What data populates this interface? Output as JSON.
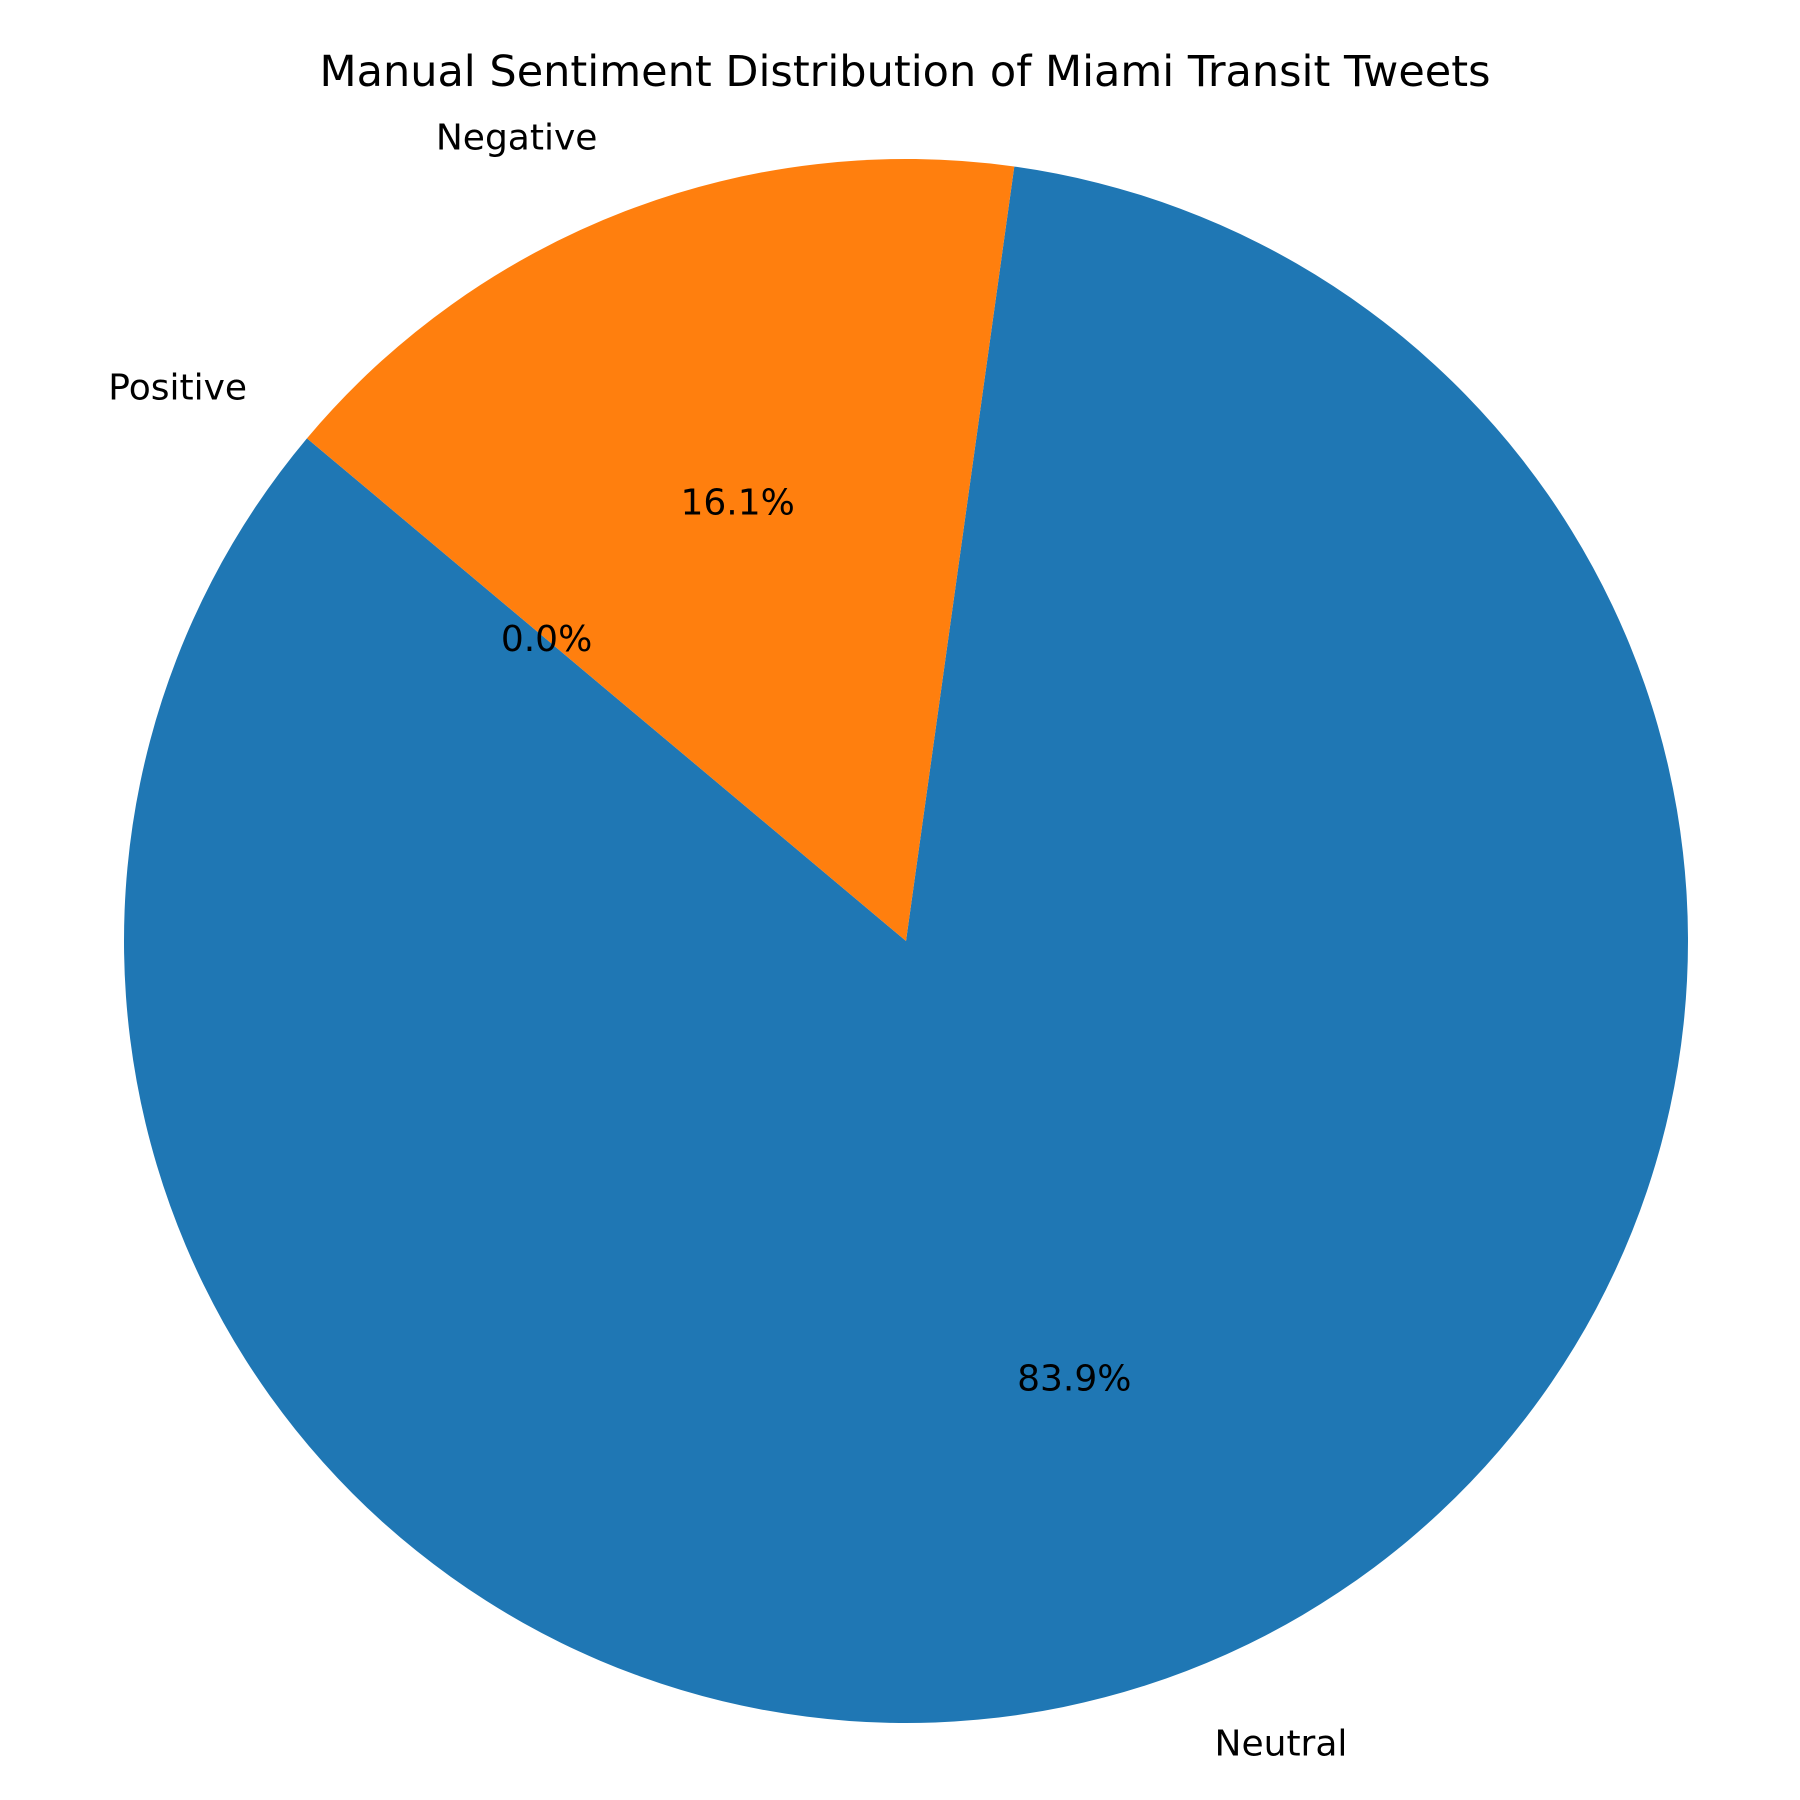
{
  "chart_data": {
    "type": "pie",
    "title": "Manual Sentiment Distribution of Miami Transit Tweets",
    "start_angle_deg": 140,
    "direction": "counterclockwise",
    "slices": [
      {
        "label": "Positive",
        "value": 0.0,
        "pct_label": "0.0%",
        "color": "#2ca02c"
      },
      {
        "label": "Neutral",
        "value": 83.9,
        "pct_label": "83.9%",
        "color": "#1f77b4"
      },
      {
        "label": "Negative",
        "value": 16.1,
        "pct_label": "16.1%",
        "color": "#ff7f0e"
      }
    ]
  }
}
